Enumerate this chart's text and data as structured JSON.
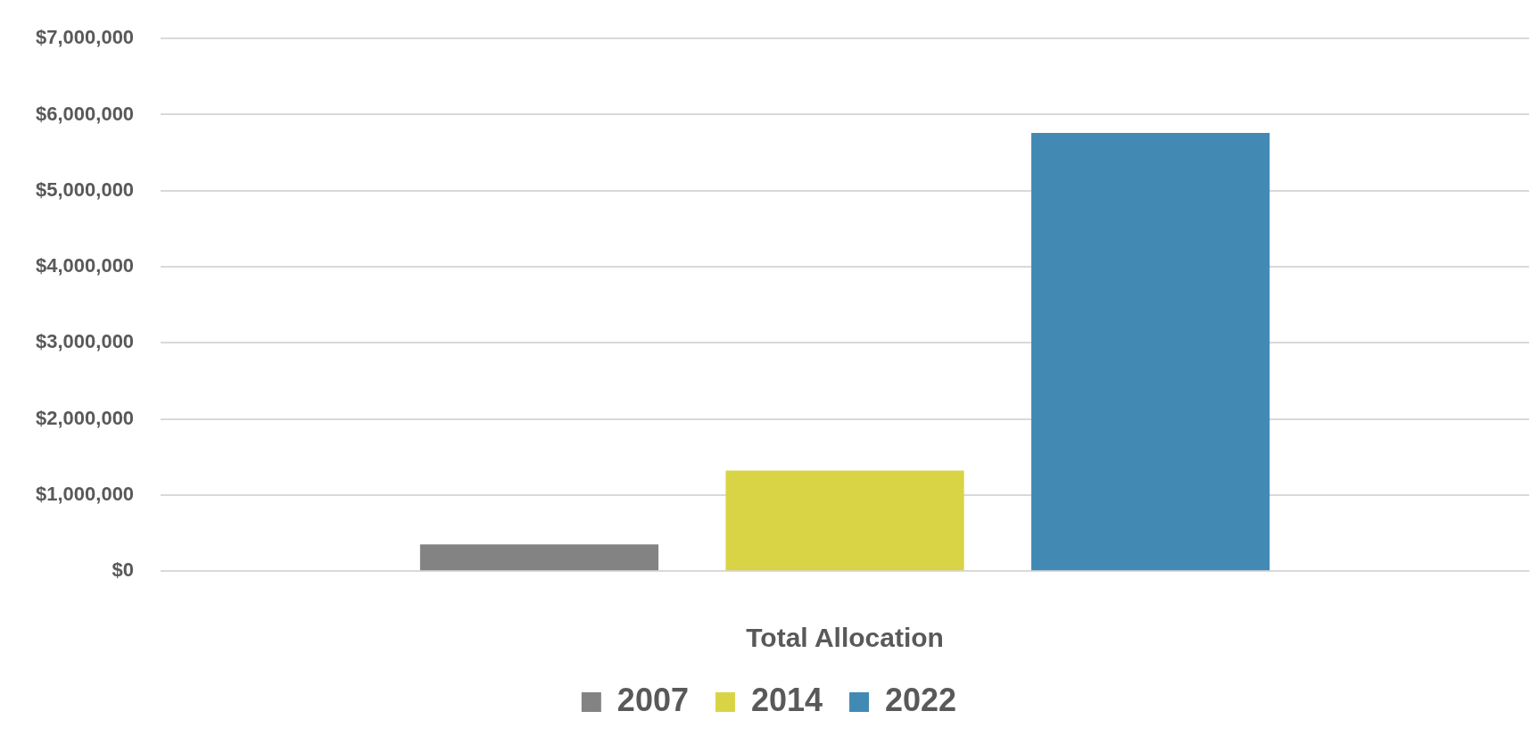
{
  "chart_data": {
    "type": "bar",
    "xlabel": "Total Allocation",
    "categories": [
      null
    ],
    "series": [
      {
        "name": "2007",
        "color": "#838383",
        "values": [
          350000
        ]
      },
      {
        "name": "2014",
        "color": "#d9d446",
        "values": [
          1320000
        ]
      },
      {
        "name": "2022",
        "color": "#428ab4",
        "values": [
          5760000
        ]
      }
    ],
    "ylim": [
      0,
      7000000
    ],
    "yticks": [
      {
        "value": 0,
        "label": "$0"
      },
      {
        "value": 1000000,
        "label": "$1,000,000"
      },
      {
        "value": 2000000,
        "label": "$2,000,000"
      },
      {
        "value": 3000000,
        "label": "$3,000,000"
      },
      {
        "value": 4000000,
        "label": "$4,000,000"
      },
      {
        "value": 5000000,
        "label": "$5,000,000"
      },
      {
        "value": 6000000,
        "label": "$6,000,000"
      },
      {
        "value": 7000000,
        "label": "$7,000,000"
      }
    ],
    "grid": "y",
    "legend": "bottom"
  }
}
